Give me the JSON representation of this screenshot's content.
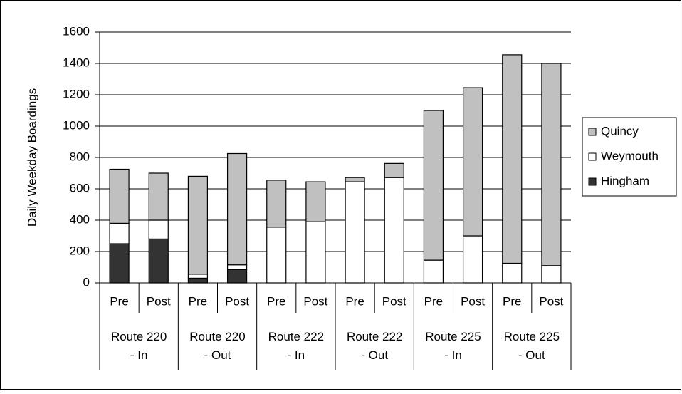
{
  "chart_data": {
    "type": "stacked-bar",
    "y_label": "Daily Weekday Boardings",
    "categories": [
      "Pre",
      "Post",
      "Pre",
      "Post",
      "Pre",
      "Post",
      "Pre",
      "Post",
      "Pre",
      "Post",
      "Pre",
      "Post"
    ],
    "groups": [
      "Route 220 - In",
      "Route 220 - Out",
      "Route 222 - In",
      "Route 222 - Out",
      "Route 225 - In",
      "Route 225 - Out"
    ],
    "series": [
      {
        "name": "Hingham",
        "color": "#333333",
        "values": [
          250,
          280,
          30,
          85,
          0,
          0,
          0,
          0,
          0,
          0,
          0,
          0
        ]
      },
      {
        "name": "Weymouth",
        "color": "#ffffff",
        "values": [
          130,
          120,
          25,
          30,
          355,
          390,
          645,
          672,
          145,
          300,
          125,
          110
        ]
      },
      {
        "name": "Quincy",
        "color": "#c0c0c0",
        "values": [
          345,
          300,
          625,
          710,
          300,
          255,
          27,
          90,
          955,
          945,
          1330,
          1290
        ]
      }
    ],
    "ylim": [
      0,
      1600
    ],
    "yticks": [
      0,
      200,
      400,
      600,
      800,
      1000,
      1200,
      1400,
      1600
    ],
    "grid": true,
    "legend": "right"
  }
}
